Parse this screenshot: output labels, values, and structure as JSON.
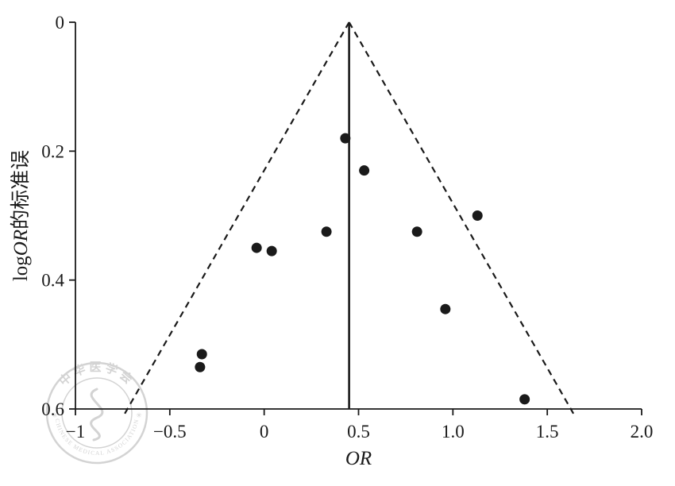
{
  "chart_data": {
    "type": "scatter",
    "title": "",
    "xlabel": "OR",
    "xlabel_italic": true,
    "ylabel": "logOR的标准误",
    "ylabel_parts": [
      {
        "text": "log",
        "italic": false
      },
      {
        "text": "OR",
        "italic": true
      },
      {
        "text": "的标准误",
        "italic": false
      }
    ],
    "xlim": [
      -1,
      2.0
    ],
    "ylim": [
      0,
      0.6
    ],
    "y_axis_inverted": true,
    "x_ticks": [
      -1,
      -0.5,
      0,
      0.5,
      1.0,
      1.5,
      2.0
    ],
    "x_tick_labels": [
      "−1",
      "−0.5",
      "0",
      "0.5",
      "1.0",
      "1.5",
      "2.0"
    ],
    "y_ticks": [
      0,
      0.2,
      0.4,
      0.6
    ],
    "y_tick_labels": [
      "0",
      "0.2",
      "0.4",
      "0.6"
    ],
    "center_line_x": 0.45,
    "funnel": {
      "apex": [
        0.45,
        0
      ],
      "left_base": [
        -0.75,
        0.613
      ],
      "right_base": [
        1.65,
        0.613
      ]
    },
    "points": [
      {
        "x": 0.43,
        "y": 0.18
      },
      {
        "x": 0.53,
        "y": 0.23
      },
      {
        "x": 1.13,
        "y": 0.3
      },
      {
        "x": 0.33,
        "y": 0.325
      },
      {
        "x": 0.81,
        "y": 0.325
      },
      {
        "x": -0.04,
        "y": 0.35
      },
      {
        "x": 0.04,
        "y": 0.355
      },
      {
        "x": 0.96,
        "y": 0.445
      },
      {
        "x": -0.33,
        "y": 0.515
      },
      {
        "x": -0.34,
        "y": 0.535
      },
      {
        "x": 1.38,
        "y": 0.585
      }
    ],
    "colors": {
      "ink": "#1a1a1a",
      "point": "#1a1a1a",
      "watermark": "#b0b0b0"
    },
    "legend": null,
    "grid": false
  },
  "watermark": {
    "org_cn": "中华医学会",
    "org_en": "CHINESE MEDICAL ASSOCIATION",
    "separator": "✳"
  }
}
